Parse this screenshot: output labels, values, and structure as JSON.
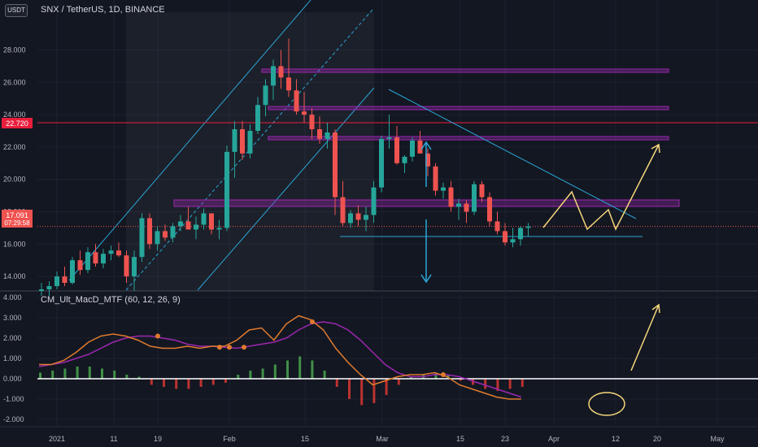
{
  "header": {
    "currency_badge": "USDT",
    "symbol_title": "SNX / TetherUS, 1D, BINANCE"
  },
  "colors": {
    "background": "#131722",
    "grid": "#1e2230",
    "up": "#26a69a",
    "down": "#ef5350",
    "channel": "#2aa7d6",
    "zone": "#9c27b0",
    "projection": "#f5d67a",
    "macd_line": "#9c27b0",
    "signal_line": "#e07b2e",
    "resistance_line": "#e91e3c"
  },
  "chart_data": [
    {
      "type": "candlestick",
      "title": "SNX / TetherUS, 1D, BINANCE",
      "xlabel": "",
      "ylabel": "",
      "ylim": [
        12.7,
        29.8
      ],
      "y_ticks": [
        "14.000",
        "16.000",
        "18.000",
        "20.000",
        "22.000",
        "24.000",
        "26.000",
        "28.000"
      ],
      "x_ticks": [
        "2021",
        "11",
        "19",
        "Feb",
        "15",
        "Mar",
        "15",
        "23",
        "Apr",
        "12",
        "20",
        "May"
      ],
      "price_labels": {
        "current_price": "17.091",
        "countdown": "07:29:58",
        "marked_level": "22.720"
      },
      "grid": true,
      "candles_ohlc": [
        [
          13.1,
          13.6,
          12.8,
          13.2
        ],
        [
          13.2,
          13.7,
          12.8,
          13.4
        ],
        [
          13.4,
          14.3,
          13.2,
          14.0
        ],
        [
          14.0,
          14.6,
          13.4,
          13.6
        ],
        [
          13.6,
          15.2,
          13.5,
          15.0
        ],
        [
          15.0,
          15.6,
          14.1,
          14.4
        ],
        [
          14.4,
          15.8,
          14.2,
          15.5
        ],
        [
          15.5,
          16.0,
          14.6,
          14.8
        ],
        [
          14.8,
          15.7,
          14.5,
          15.4
        ],
        [
          15.4,
          15.9,
          15.0,
          15.6
        ],
        [
          15.6,
          16.1,
          15.2,
          15.3
        ],
        [
          15.3,
          15.6,
          13.6,
          14.0
        ],
        [
          14.0,
          15.6,
          13.1,
          15.2
        ],
        [
          15.2,
          17.9,
          14.9,
          17.6
        ],
        [
          17.6,
          17.9,
          15.7,
          16.0
        ],
        [
          16.0,
          17.1,
          15.6,
          16.8
        ],
        [
          16.8,
          17.2,
          16.2,
          16.4
        ],
        [
          16.4,
          17.3,
          16.1,
          17.1
        ],
        [
          17.1,
          17.8,
          16.8,
          17.4
        ],
        [
          17.4,
          18.3,
          16.9,
          16.9
        ],
        [
          16.9,
          17.7,
          16.3,
          17.2
        ],
        [
          17.2,
          18.2,
          16.9,
          17.9
        ],
        [
          17.9,
          17.9,
          16.6,
          16.9
        ],
        [
          16.9,
          17.5,
          16.3,
          17.0
        ],
        [
          17.0,
          22.1,
          16.8,
          21.7
        ],
        [
          21.7,
          23.6,
          20.1,
          23.1
        ],
        [
          23.1,
          23.6,
          21.2,
          21.6
        ],
        [
          21.6,
          23.4,
          21.3,
          23.0
        ],
        [
          23.0,
          25.1,
          22.8,
          24.6
        ],
        [
          24.6,
          26.2,
          23.9,
          25.8
        ],
        [
          25.8,
          27.4,
          24.9,
          27.0
        ],
        [
          27.0,
          28.0,
          25.6,
          26.3
        ],
        [
          26.3,
          28.7,
          25.1,
          25.5
        ],
        [
          25.5,
          26.2,
          24.0,
          24.2
        ],
        [
          24.2,
          25.4,
          23.5,
          24.0
        ],
        [
          24.0,
          24.4,
          22.5,
          23.1
        ],
        [
          23.1,
          23.9,
          22.2,
          22.5
        ],
        [
          22.5,
          23.5,
          21.9,
          22.9
        ],
        [
          22.9,
          23.1,
          17.8,
          18.9
        ],
        [
          18.9,
          19.9,
          17.1,
          17.3
        ],
        [
          17.3,
          18.1,
          17.0,
          17.9
        ],
        [
          17.9,
          18.4,
          17.1,
          17.5
        ],
        [
          17.5,
          18.3,
          16.8,
          17.8
        ],
        [
          17.8,
          19.9,
          17.3,
          19.5
        ],
        [
          19.5,
          22.7,
          19.2,
          22.5
        ],
        [
          22.5,
          24.0,
          21.9,
          22.6
        ],
        [
          22.6,
          23.3,
          20.9,
          21.0
        ],
        [
          21.0,
          21.5,
          20.4,
          21.4
        ],
        [
          21.4,
          22.6,
          21.1,
          22.4
        ],
        [
          22.4,
          23.0,
          21.8,
          21.6
        ],
        [
          21.6,
          21.9,
          20.2,
          20.8
        ],
        [
          20.8,
          21.0,
          19.0,
          19.3
        ],
        [
          19.3,
          19.8,
          18.8,
          19.5
        ],
        [
          19.5,
          19.9,
          18.0,
          18.3
        ],
        [
          18.3,
          18.8,
          17.5,
          18.5
        ],
        [
          18.5,
          18.7,
          17.3,
          18.0
        ],
        [
          18.0,
          19.9,
          17.8,
          19.7
        ],
        [
          19.7,
          19.9,
          18.6,
          18.9
        ],
        [
          18.9,
          19.2,
          17.1,
          17.4
        ],
        [
          17.4,
          18.0,
          16.6,
          16.8
        ],
        [
          16.8,
          17.3,
          15.9,
          16.1
        ],
        [
          16.1,
          17.0,
          15.8,
          16.3
        ],
        [
          16.3,
          17.1,
          15.9,
          17.0
        ],
        [
          17.0,
          17.3,
          16.5,
          17.09
        ]
      ],
      "annotations": {
        "price_channel": "ascending",
        "supply_zones": [
          26.0,
          23.6,
          21.8
        ],
        "demand_zone": [
          17.6,
          18.0
        ],
        "support_line": 15.7,
        "resistance_level": 22.72,
        "descending_trendline": true,
        "projection_zigzag": true,
        "arrows": [
          "up",
          "down"
        ]
      }
    },
    {
      "type": "line",
      "title": "CM_Ult_MacD_MTF (60, 12, 26, 9)",
      "ylim": [
        -2.3,
        4.3
      ],
      "y_ticks": [
        "4.000",
        "3.000",
        "2.000",
        "1.000",
        "0.000",
        "-1.000",
        "-2.000"
      ],
      "series": [
        {
          "name": "MACD",
          "color": "#9c27b0",
          "values": [
            0.6,
            0.7,
            0.8,
            1.0,
            1.2,
            1.5,
            1.8,
            2.0,
            2.1,
            2.1,
            2.0,
            1.9,
            1.7,
            1.6,
            1.6,
            1.55,
            1.5,
            1.6,
            1.7,
            1.8,
            2.0,
            2.4,
            2.7,
            2.8,
            2.7,
            2.4,
            1.9,
            1.3,
            0.7,
            0.3,
            0.1,
            0.1,
            0.2,
            0.2,
            0.1,
            -0.1,
            -0.3,
            -0.5,
            -0.7,
            -0.9
          ]
        },
        {
          "name": "Signal",
          "color": "#e07b2e",
          "values": [
            0.7,
            0.7,
            0.9,
            1.3,
            1.8,
            2.1,
            2.2,
            2.1,
            1.9,
            1.6,
            1.5,
            1.5,
            1.6,
            1.5,
            1.6,
            1.6,
            1.9,
            2.4,
            2.5,
            1.9,
            2.7,
            3.1,
            2.9,
            2.4,
            1.5,
            0.8,
            0.2,
            -0.3,
            -0.1,
            0.1,
            0.2,
            0.2,
            0.3,
            0.1,
            -0.3,
            -0.5,
            -0.7,
            -0.9,
            -1.0,
            -1.0
          ]
        }
      ],
      "histogram": [
        0.3,
        0.4,
        0.5,
        0.6,
        0.6,
        0.5,
        0.4,
        0.2,
        0.1,
        -0.3,
        -0.4,
        -0.5,
        -0.5,
        -0.4,
        -0.3,
        -0.2,
        0.2,
        0.4,
        0.5,
        0.7,
        0.9,
        1.1,
        0.9,
        0.4,
        -0.4,
        -1.0,
        -1.3,
        -1.2,
        -0.8,
        -0.3,
        0.1,
        0.2,
        0.3,
        0.2,
        -0.1,
        -0.3,
        -0.5,
        -0.6,
        -0.5,
        -0.4
      ]
    }
  ]
}
